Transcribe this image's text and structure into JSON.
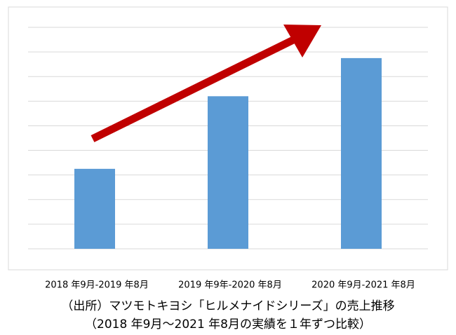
{
  "chart_data": {
    "type": "bar",
    "categories": [
      "2018 年9月-2019 年8月",
      "2019 年9年-2020 年8月",
      "2020 年9月-2021 年8月"
    ],
    "values": [
      3.25,
      6.2,
      7.75
    ],
    "color": "#5b9bd5",
    "ylim": [
      0,
      9
    ],
    "yticks": [
      0,
      1,
      2,
      3,
      4,
      5,
      6,
      7,
      8,
      9
    ],
    "grid": true,
    "caption": [
      "（出所）マツモトキヨシ「ヒルメナイドシリーズ」の売上推移",
      "（2018 年9月～2021 年8月の実績を１年ずつ比較）"
    ]
  }
}
